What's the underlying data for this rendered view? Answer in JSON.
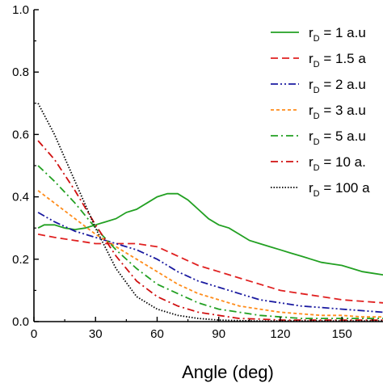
{
  "chart_data": {
    "type": "line",
    "title": "",
    "xlabel": "Angle (deg)",
    "ylabel": "",
    "xlim": [
      0,
      170
    ],
    "ylim": [
      0,
      1.0
    ],
    "xticks": [
      0,
      30,
      60,
      90,
      120,
      150
    ],
    "xtick_labels": [
      "0",
      "30",
      "60",
      "90",
      "120",
      "150"
    ],
    "yticks": [
      0,
      0.2,
      0.4,
      0.6,
      0.8,
      1.0
    ],
    "ytick_labels": [
      "0.0",
      "0.2",
      "0.4",
      "0.6",
      "0.8",
      "1.0"
    ],
    "grid": false,
    "legend_position": "top-right",
    "series": [
      {
        "name_prefix": "r",
        "name_sub": "D",
        "name_suffix": " = 1 a.u",
        "color": "#22a022",
        "style": "solid",
        "x": [
          2,
          5,
          10,
          15,
          20,
          25,
          30,
          35,
          40,
          45,
          50,
          55,
          60,
          65,
          70,
          75,
          80,
          85,
          90,
          95,
          100,
          105,
          110,
          115,
          120,
          125,
          130,
          135,
          140,
          145,
          150,
          155,
          160,
          165,
          170
        ],
        "y": [
          0.3,
          0.31,
          0.31,
          0.3,
          0.295,
          0.3,
          0.31,
          0.32,
          0.33,
          0.35,
          0.36,
          0.38,
          0.4,
          0.41,
          0.41,
          0.39,
          0.36,
          0.33,
          0.31,
          0.3,
          0.28,
          0.26,
          0.25,
          0.24,
          0.23,
          0.22,
          0.21,
          0.2,
          0.19,
          0.185,
          0.18,
          0.17,
          0.16,
          0.155,
          0.15
        ]
      },
      {
        "name_prefix": "r",
        "name_sub": "D",
        "name_suffix": " = 1.5 a",
        "color": "#e02020",
        "style": "dash",
        "x": [
          2,
          10,
          20,
          30,
          40,
          50,
          60,
          70,
          80,
          90,
          100,
          110,
          120,
          130,
          140,
          150,
          160,
          170
        ],
        "y": [
          0.28,
          0.27,
          0.26,
          0.25,
          0.25,
          0.25,
          0.24,
          0.21,
          0.18,
          0.16,
          0.14,
          0.12,
          0.1,
          0.09,
          0.08,
          0.07,
          0.065,
          0.06
        ]
      },
      {
        "name_prefix": "r",
        "name_sub": "D",
        "name_suffix": " = 2 a.u",
        "color": "#1a1aa0",
        "style": "dashdotdot",
        "x": [
          2,
          10,
          20,
          30,
          40,
          50,
          60,
          70,
          80,
          90,
          100,
          110,
          120,
          130,
          140,
          150,
          160,
          170
        ],
        "y": [
          0.35,
          0.32,
          0.29,
          0.27,
          0.25,
          0.23,
          0.2,
          0.16,
          0.13,
          0.11,
          0.09,
          0.07,
          0.06,
          0.05,
          0.045,
          0.04,
          0.035,
          0.03
        ]
      },
      {
        "name_prefix": "r",
        "name_sub": "D",
        "name_suffix": " = 3 a.u",
        "color": "#ff8c1a",
        "style": "shortdash",
        "x": [
          2,
          10,
          20,
          30,
          40,
          50,
          60,
          70,
          80,
          90,
          100,
          110,
          120,
          130,
          140,
          150,
          160,
          170
        ],
        "y": [
          0.42,
          0.38,
          0.33,
          0.28,
          0.24,
          0.2,
          0.16,
          0.12,
          0.09,
          0.07,
          0.05,
          0.04,
          0.03,
          0.025,
          0.02,
          0.02,
          0.015,
          0.015
        ]
      },
      {
        "name_prefix": "r",
        "name_sub": "D",
        "name_suffix": " = 5 a.u",
        "color": "#22a022",
        "style": "dashdot",
        "x": [
          2,
          10,
          20,
          30,
          40,
          50,
          60,
          70,
          80,
          90,
          100,
          110,
          120,
          130,
          140,
          150,
          160,
          170
        ],
        "y": [
          0.5,
          0.45,
          0.38,
          0.3,
          0.23,
          0.17,
          0.12,
          0.09,
          0.06,
          0.04,
          0.03,
          0.02,
          0.015,
          0.01,
          0.01,
          0.01,
          0.01,
          0.01
        ]
      },
      {
        "name_prefix": "r",
        "name_sub": "D",
        "name_suffix": " = 10 a.",
        "color": "#d01010",
        "style": "dashdot",
        "x": [
          2,
          10,
          20,
          30,
          40,
          50,
          60,
          70,
          80,
          90,
          100,
          110,
          120,
          130,
          140,
          150,
          160,
          170
        ],
        "y": [
          0.58,
          0.52,
          0.42,
          0.31,
          0.21,
          0.13,
          0.08,
          0.05,
          0.03,
          0.02,
          0.01,
          0.008,
          0.005,
          0.005,
          0.005,
          0.005,
          0.005,
          0.005
        ]
      },
      {
        "name_prefix": "r",
        "name_sub": "D",
        "name_suffix": " = 100 a",
        "color": "#000000",
        "style": "dot",
        "x": [
          2,
          10,
          20,
          30,
          40,
          50,
          60,
          70,
          80,
          90,
          100,
          110,
          120,
          130,
          140,
          150,
          160,
          170
        ],
        "y": [
          0.7,
          0.6,
          0.45,
          0.3,
          0.17,
          0.08,
          0.04,
          0.02,
          0.01,
          0.005,
          0.003,
          0.002,
          0.002,
          0.002,
          0.002,
          0.002,
          0.002,
          0.002
        ]
      }
    ]
  }
}
